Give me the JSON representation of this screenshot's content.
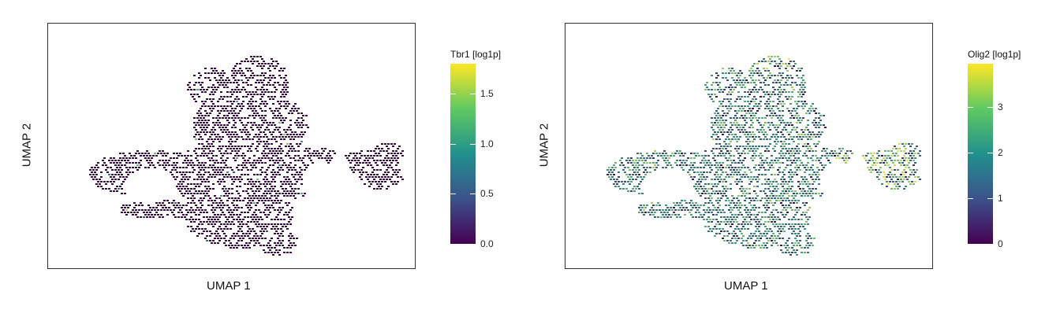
{
  "chart_data": [
    {
      "type": "scatter",
      "xlabel": "UMAP 1",
      "ylabel": "UMAP 2",
      "legend_title": "Tbr1 [log1p]",
      "colorbar_ticks": [
        0.0,
        0.5,
        1.0,
        1.5
      ],
      "colorbar_tick_labels": [
        "0.0",
        "0.5",
        "1.0",
        "1.5"
      ],
      "color_range": [
        0,
        1.8
      ],
      "colormap": [
        "#440154",
        "#3b528b",
        "#21918c",
        "#5ec962",
        "#fde725"
      ],
      "expression_profile": "mostly-zero",
      "legend_placement": "right",
      "grid": false
    },
    {
      "type": "scatter",
      "xlabel": "UMAP 1",
      "ylabel": "UMAP 2",
      "legend_title": "Olig2 [log1p]",
      "colorbar_ticks": [
        0,
        1,
        2,
        3
      ],
      "colorbar_tick_labels": [
        "0",
        "1",
        "2",
        "3"
      ],
      "color_range": [
        0,
        3.95
      ],
      "colormap": [
        "#440154",
        "#3b528b",
        "#21918c",
        "#5ec962",
        "#fde725"
      ],
      "expression_profile": "broad-mid",
      "legend_placement": "right",
      "grid": false
    }
  ]
}
